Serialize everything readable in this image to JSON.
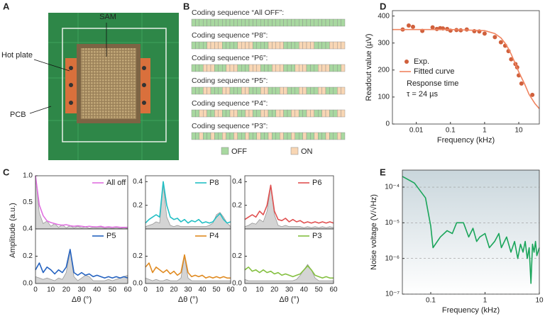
{
  "figure": {
    "A": {
      "panel_label": "A",
      "labels": [
        "SAM",
        "Hot plate",
        "PCB"
      ]
    },
    "B": {
      "panel_label": "B",
      "off_color": "#a8d8a0",
      "on_color": "#f8d6b4",
      "sequences": [
        {
          "label": "Coding sequence “All OFF”:",
          "pattern": [
            0,
            0,
            0,
            0,
            0,
            0,
            0,
            0,
            0,
            0,
            0,
            0,
            0,
            0,
            0,
            0,
            0,
            0,
            0,
            0,
            0,
            0,
            0,
            0,
            0,
            0,
            0,
            0,
            0,
            0,
            0,
            0,
            0,
            0,
            0,
            0,
            0,
            0,
            0,
            0
          ]
        },
        {
          "label": "Coding sequence “P8”:",
          "pattern": [
            0,
            0,
            0,
            0,
            1,
            1,
            1,
            1,
            0,
            0,
            0,
            0,
            1,
            1,
            1,
            1,
            0,
            0,
            0,
            0,
            1,
            1,
            1,
            1,
            0,
            0,
            0,
            0,
            1,
            1,
            1,
            1,
            0,
            0,
            0,
            0,
            1,
            1,
            1,
            1
          ]
        },
        {
          "label": "Coding sequence “P6”:",
          "pattern": [
            0,
            0,
            0,
            1,
            1,
            1,
            0,
            0,
            0,
            1,
            1,
            1,
            0,
            0,
            0,
            1,
            1,
            1,
            0,
            0,
            0,
            1,
            1,
            1,
            0,
            0,
            0,
            1,
            1,
            1,
            0,
            0,
            0,
            1,
            1,
            1,
            0,
            0,
            0,
            1
          ]
        },
        {
          "label": "Coding sequence “P5”:",
          "pattern": [
            0,
            0,
            0,
            1,
            1,
            0,
            0,
            0,
            1,
            1,
            0,
            0,
            0,
            1,
            1,
            0,
            0,
            0,
            1,
            1,
            0,
            0,
            0,
            1,
            1,
            0,
            0,
            0,
            1,
            1,
            0,
            0,
            0,
            1,
            1,
            0,
            0,
            0,
            1,
            1
          ]
        },
        {
          "label": "Coding sequence “P4”:",
          "pattern": [
            0,
            0,
            1,
            1,
            0,
            0,
            1,
            1,
            0,
            0,
            1,
            1,
            0,
            0,
            1,
            1,
            0,
            0,
            1,
            1,
            0,
            0,
            1,
            1,
            0,
            0,
            1,
            1,
            0,
            0,
            1,
            1,
            0,
            0,
            1,
            1,
            0,
            0,
            1,
            1
          ]
        },
        {
          "label": "Coding sequence “P3”:",
          "pattern": [
            0,
            0,
            1,
            0,
            0,
            1,
            0,
            0,
            1,
            0,
            0,
            1,
            0,
            0,
            1,
            0,
            0,
            1,
            0,
            0,
            1,
            0,
            0,
            1,
            0,
            0,
            1,
            0,
            0,
            1,
            0,
            0,
            1,
            0,
            0,
            1,
            0,
            0,
            1,
            0
          ]
        }
      ],
      "legend": [
        "OFF",
        "ON"
      ]
    }
  },
  "chart_data": [
    {
      "type": "line",
      "panel_label": "D",
      "xlog": true,
      "xlim": [
        0.002,
        40
      ],
      "xticks": [
        0.01,
        0.1,
        1,
        10
      ],
      "ylim": [
        0,
        420
      ],
      "yticks": [
        0,
        100,
        200,
        300,
        400
      ],
      "xlabel": "Frequency (kHz)",
      "ylabel": "Readout value (µV)",
      "legend": "center left",
      "annotations": [
        "Response time",
        "τ = 24 µs"
      ],
      "series": [
        {
          "name": "Exp.",
          "type": "scatter",
          "color": "#d0603c",
          "x": [
            0.004,
            0.006,
            0.008,
            0.015,
            0.03,
            0.04,
            0.05,
            0.06,
            0.08,
            0.1,
            0.15,
            0.2,
            0.3,
            0.5,
            0.7,
            1,
            2,
            3,
            4,
            5,
            6,
            8,
            9,
            10,
            12,
            25
          ],
          "values": [
            350,
            365,
            360,
            345,
            358,
            352,
            355,
            354,
            352,
            346,
            348,
            347,
            350,
            344,
            343,
            335,
            322,
            303,
            290,
            270,
            240,
            222,
            210,
            180,
            150,
            108
          ]
        },
        {
          "name": "Fitted curve",
          "color": "#f08460",
          "x": [
            0.002,
            0.1,
            1,
            2,
            3,
            4,
            5,
            6,
            8,
            10,
            15,
            20,
            30,
            40
          ],
          "values": [
            350,
            350,
            346,
            335,
            319,
            299,
            279,
            259,
            222,
            193,
            147,
            110,
            75,
            57
          ]
        }
      ]
    },
    {
      "type": "line",
      "panel_label": "C",
      "ylabel": "Amplitude (a.u.)",
      "xlim": [
        0,
        60
      ],
      "ylim": [
        0,
        1
      ],
      "yticks": [
        0.5,
        {
          "value": 1,
          "label": "1.0"
        }
      ],
      "legend": "upper right",
      "x": [
        0,
        2.5,
        5,
        7.5,
        10,
        12.5,
        15,
        17.5,
        20,
        22.5,
        25,
        27.5,
        30,
        32.5,
        35,
        37.5,
        40,
        42.5,
        45,
        47.5,
        50,
        52.5,
        55,
        57.5,
        60
      ],
      "series": [
        {
          "name": "All off",
          "color": "#e070e0",
          "values": [
            1.0,
            0.45,
            0.25,
            0.15,
            0.12,
            0.1,
            0.08,
            0.07,
            0.08,
            0.06,
            0.05,
            0.06,
            0.05,
            0.04,
            0.05,
            0.04,
            0.04,
            0.05,
            0.03,
            0.04,
            0.03,
            0.04,
            0.03,
            0.03,
            0.03
          ]
        },
        {
          "color": "#aaaaaa",
          "area": true,
          "values": [
            1.0,
            0.3,
            0.1,
            0.15,
            0.05,
            0.1,
            0.03,
            0.08,
            0.02,
            0.06,
            0.02,
            0.05,
            0.02,
            0.04,
            0.01,
            0.03,
            0.02,
            0.03,
            0.01,
            0.02,
            0.01,
            0.02,
            0.01,
            0.02,
            0.01
          ]
        }
      ]
    },
    {
      "type": "line",
      "xlim": [
        0,
        60
      ],
      "ylim": [
        0,
        0.45
      ],
      "yticks": [
        0.2,
        0.4
      ],
      "legend": "upper right",
      "x": [
        0,
        2.5,
        5,
        7.5,
        10,
        12.5,
        15,
        17.5,
        20,
        22.5,
        25,
        27.5,
        30,
        32.5,
        35,
        37.5,
        40,
        42.5,
        45,
        47.5,
        50,
        52.5,
        55,
        57.5,
        60
      ],
      "series": [
        {
          "name": "P8",
          "color": "#22bfc4",
          "values": [
            0.05,
            0.08,
            0.1,
            0.12,
            0.1,
            0.4,
            0.2,
            0.1,
            0.08,
            0.09,
            0.06,
            0.08,
            0.05,
            0.07,
            0.06,
            0.08,
            0.05,
            0.06,
            0.05,
            0.06,
            0.1,
            0.13,
            0.08,
            0.05,
            0.06
          ]
        },
        {
          "color": "#aaaaaa",
          "area": true,
          "values": [
            0.02,
            0.03,
            0.04,
            0.06,
            0.05,
            0.38,
            0.1,
            0.03,
            0.02,
            0.03,
            0.02,
            0.02,
            0.02,
            0.02,
            0.02,
            0.02,
            0.02,
            0.02,
            0.03,
            0.05,
            0.12,
            0.14,
            0.1,
            0.05,
            0.02
          ]
        }
      ]
    },
    {
      "type": "line",
      "xlim": [
        0,
        60
      ],
      "ylim": [
        0,
        0.45
      ],
      "yticks": [
        0.2,
        0.4
      ],
      "legend": "upper right",
      "x": [
        0,
        2.5,
        5,
        7.5,
        10,
        12.5,
        15,
        17.5,
        20,
        22.5,
        25,
        27.5,
        30,
        32.5,
        35,
        37.5,
        40,
        42.5,
        45,
        47.5,
        50,
        52.5,
        55,
        57.5,
        60
      ],
      "series": [
        {
          "name": "P6",
          "color": "#e05050",
          "values": [
            0.08,
            0.1,
            0.12,
            0.1,
            0.15,
            0.12,
            0.2,
            0.37,
            0.15,
            0.08,
            0.07,
            0.09,
            0.06,
            0.08,
            0.06,
            0.07,
            0.05,
            0.06,
            0.05,
            0.06,
            0.05,
            0.06,
            0.05,
            0.06,
            0.05
          ]
        },
        {
          "color": "#aaaaaa",
          "area": true,
          "values": [
            0.02,
            0.03,
            0.05,
            0.04,
            0.08,
            0.06,
            0.15,
            0.36,
            0.12,
            0.03,
            0.02,
            0.03,
            0.02,
            0.02,
            0.02,
            0.02,
            0.01,
            0.02,
            0.01,
            0.02,
            0.01,
            0.02,
            0.01,
            0.02,
            0.01
          ]
        }
      ]
    },
    {
      "type": "line",
      "xlabel": "Δθ (°)",
      "xlim": [
        0,
        60
      ],
      "xticks": [
        0,
        10,
        20,
        30,
        40,
        50,
        60
      ],
      "ylim": [
        0,
        0.4
      ],
      "yticks": [
        {
          "value": 0,
          "label": "0.0"
        },
        0.2,
        0.4
      ],
      "legend": "upper right",
      "x": [
        0,
        2.5,
        5,
        7.5,
        10,
        12.5,
        15,
        17.5,
        20,
        22.5,
        25,
        27.5,
        30,
        32.5,
        35,
        37.5,
        40,
        42.5,
        45,
        47.5,
        50,
        52.5,
        55,
        57.5,
        60
      ],
      "series": [
        {
          "name": "P5",
          "color": "#2462c0",
          "values": [
            0.1,
            0.15,
            0.08,
            0.12,
            0.1,
            0.07,
            0.1,
            0.08,
            0.12,
            0.25,
            0.08,
            0.06,
            0.08,
            0.06,
            0.07,
            0.05,
            0.06,
            0.05,
            0.04,
            0.05,
            0.04,
            0.05,
            0.04,
            0.05,
            0.04
          ]
        },
        {
          "color": "#aaaaaa",
          "area": true,
          "values": [
            0.05,
            0.04,
            0.03,
            0.04,
            0.03,
            0.02,
            0.04,
            0.03,
            0.08,
            0.24,
            0.05,
            0.02,
            0.04,
            0.06,
            0.05,
            0.02,
            0.02,
            0.02,
            0.02,
            0.03,
            0.02,
            0.03,
            0.04,
            0.05,
            0.06
          ]
        }
      ]
    },
    {
      "type": "line",
      "xlabel": "Δθ (°)",
      "xlim": [
        0,
        60
      ],
      "xticks": [
        0,
        10,
        20,
        30,
        40,
        50,
        60
      ],
      "ylim": [
        0,
        0.4
      ],
      "yticks": [
        {
          "value": 0,
          "label": "0.0"
        },
        0.2
      ],
      "legend": "upper right",
      "x": [
        0,
        2.5,
        5,
        7.5,
        10,
        12.5,
        15,
        17.5,
        20,
        22.5,
        25,
        27.5,
        30,
        32.5,
        35,
        37.5,
        40,
        42.5,
        45,
        47.5,
        50,
        52.5,
        55,
        57.5,
        60
      ],
      "series": [
        {
          "name": "P4",
          "color": "#e08a20",
          "values": [
            0.12,
            0.15,
            0.08,
            0.12,
            0.1,
            0.08,
            0.1,
            0.07,
            0.09,
            0.06,
            0.08,
            0.21,
            0.08,
            0.05,
            0.06,
            0.05,
            0.06,
            0.04,
            0.05,
            0.04,
            0.05,
            0.04,
            0.05,
            0.04,
            0.04
          ]
        },
        {
          "color": "#aaaaaa",
          "area": true,
          "values": [
            0.04,
            0.03,
            0.02,
            0.03,
            0.02,
            0.02,
            0.03,
            0.02,
            0.02,
            0.02,
            0.04,
            0.2,
            0.04,
            0.02,
            0.02,
            0.02,
            0.02,
            0.02,
            0.02,
            0.02,
            0.02,
            0.02,
            0.02,
            0.02,
            0.02
          ]
        }
      ]
    },
    {
      "type": "line",
      "xlabel": "Δθ (°)",
      "xlim": [
        0,
        60
      ],
      "xticks": [
        0,
        10,
        20,
        30,
        40,
        50,
        60
      ],
      "ylim": [
        0,
        0.4
      ],
      "yticks": [
        {
          "value": 0,
          "label": "0.0"
        },
        0.2
      ],
      "legend": "upper right",
      "x": [
        0,
        2.5,
        5,
        7.5,
        10,
        12.5,
        15,
        17.5,
        20,
        22.5,
        25,
        27.5,
        30,
        32.5,
        35,
        37.5,
        40,
        42.5,
        45,
        47.5,
        50,
        52.5,
        55,
        57.5,
        60
      ],
      "series": [
        {
          "name": "P3",
          "color": "#84c040",
          "values": [
            0.1,
            0.12,
            0.09,
            0.1,
            0.08,
            0.1,
            0.08,
            0.09,
            0.07,
            0.08,
            0.06,
            0.07,
            0.06,
            0.05,
            0.06,
            0.07,
            0.1,
            0.13,
            0.1,
            0.06,
            0.05,
            0.04,
            0.05,
            0.04,
            0.04
          ]
        },
        {
          "color": "#aaaaaa",
          "area": true,
          "values": [
            0.03,
            0.02,
            0.02,
            0.02,
            0.02,
            0.02,
            0.02,
            0.02,
            0.02,
            0.02,
            0.02,
            0.02,
            0.02,
            0.02,
            0.03,
            0.06,
            0.1,
            0.14,
            0.1,
            0.04,
            0.02,
            0.02,
            0.02,
            0.02,
            0.02
          ]
        }
      ]
    },
    {
      "type": "line",
      "panel_label": "E",
      "xlog": true,
      "ylog": true,
      "grid": true,
      "xlim": [
        0.03,
        10
      ],
      "xticks": [
        0.1,
        1,
        10
      ],
      "ylim": [
        1e-07,
        0.0003
      ],
      "yticks": [
        {
          "value": 1e-07,
          "label": "10⁻⁷"
        },
        {
          "value": 1e-06,
          "label": "10⁻⁶"
        },
        {
          "value": 1e-05,
          "label": "10⁻⁵"
        },
        {
          "value": 0.0001,
          "label": "10⁻⁴"
        }
      ],
      "xlabel": "Frequency (kHz)",
      "ylabel": "Noise voltage (V/√Hz)",
      "series": [
        {
          "color": "#1aa55a",
          "x": [
            0.03,
            0.05,
            0.08,
            0.1,
            0.11,
            0.15,
            0.2,
            0.25,
            0.3,
            0.4,
            0.5,
            0.6,
            0.7,
            0.8,
            1,
            1.2,
            1.5,
            1.8,
            2,
            2.5,
            3,
            3.5,
            4,
            4.5,
            5,
            5.5,
            6,
            6.5,
            7,
            7.5,
            8,
            8.5,
            9,
            10
          ],
          "values": [
            0.0002,
            0.00013,
            5e-05,
            8e-06,
            2e-06,
            4e-06,
            6e-06,
            5e-06,
            1e-05,
            1e-05,
            4e-06,
            7e-06,
            3e-06,
            4e-06,
            5e-06,
            2e-06,
            3e-06,
            5e-06,
            2e-06,
            4e-06,
            1.5e-06,
            3e-06,
            1e-06,
            2.5e-06,
            1.5e-06,
            3e-06,
            1e-06,
            2e-06,
            2e-07,
            2.5e-06,
            1.5e-06,
            3e-06,
            1.2e-06,
            2e-06
          ]
        }
      ]
    }
  ]
}
